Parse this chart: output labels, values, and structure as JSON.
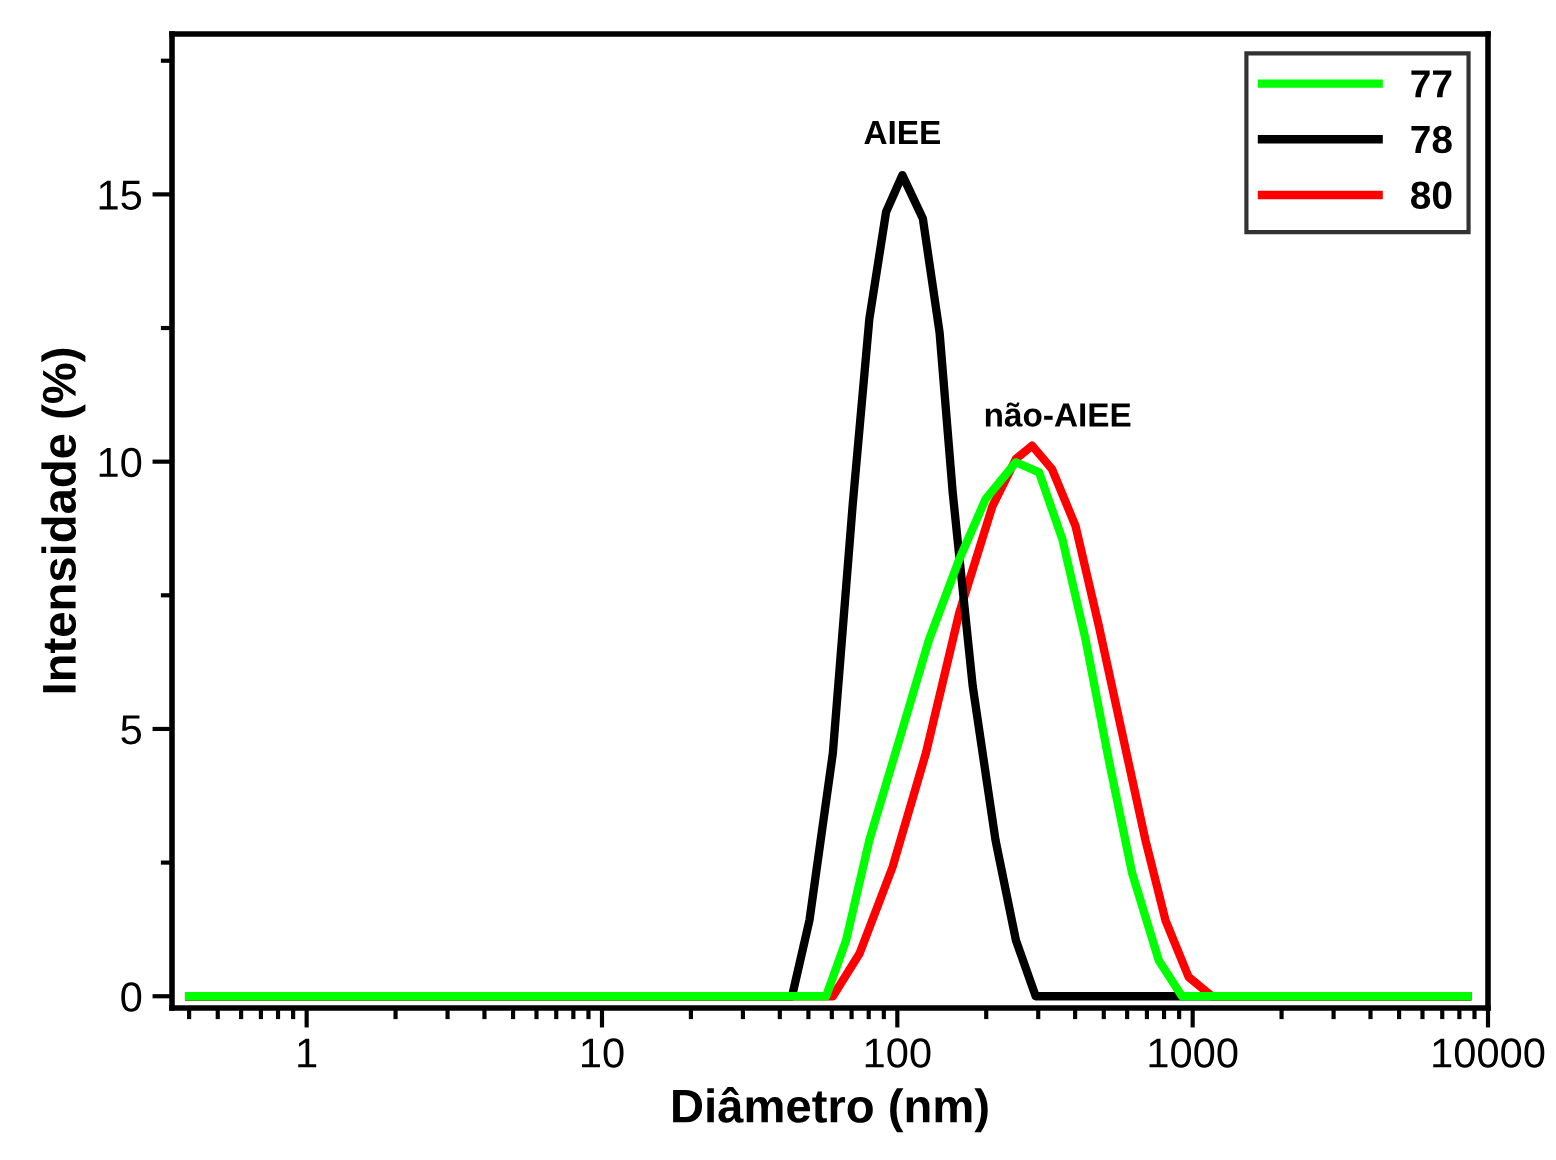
{
  "chart_data": {
    "type": "line",
    "xlabel": "Diâmetro (nm)",
    "ylabel": "Intensidade (%)",
    "log": "x",
    "xlim": [
      0.35,
      10000
    ],
    "xticks": [
      1,
      10,
      100,
      1000,
      10000
    ],
    "ylim": [
      -0.22,
      18
    ],
    "yticks": [
      0,
      5,
      10,
      15
    ],
    "grid": false,
    "legend": "top right",
    "marker": "none",
    "line_style": "solid",
    "series": [
      {
        "name": "77",
        "color": "#00ff00",
        "x": [
          0.4,
          57.4,
          67.1,
          80.4,
          101.6,
          128,
          162,
          199,
          252,
          302,
          362,
          434,
          520,
          624,
          768,
          920,
          8500
        ],
        "values": [
          0,
          0,
          1.05,
          2.92,
          4.8,
          6.67,
          8.17,
          9.3,
          9.99,
          9.8,
          8.55,
          6.67,
          4.42,
          2.3,
          0.67,
          0,
          0
        ]
      },
      {
        "name": "78",
        "color": "#000000",
        "x": [
          0.4,
          44,
          50.4,
          60.5,
          70.6,
          80.4,
          91.6,
          104,
          122,
          139,
          154,
          180,
          215,
          252,
          294,
          920,
          8500
        ],
        "values": [
          0,
          0,
          1.42,
          4.55,
          9.19,
          12.67,
          14.67,
          15.36,
          14.55,
          12.42,
          9.42,
          5.8,
          2.92,
          1.05,
          0,
          0,
          0
        ]
      },
      {
        "name": "80",
        "color": "#ff0000",
        "x": [
          0.4,
          60.5,
          74.5,
          96.4,
          125,
          162,
          210,
          252,
          286,
          334,
          401,
          481,
          577,
          692,
          809,
          969,
          1162,
          8500
        ],
        "values": [
          0,
          0,
          0.8,
          2.42,
          4.55,
          7.17,
          9.17,
          10.05,
          10.3,
          9.86,
          8.8,
          6.93,
          4.92,
          2.92,
          1.42,
          0.36,
          0,
          0
        ]
      }
    ],
    "annotations": [
      "AIEE",
      "não-AIEE"
    ]
  }
}
